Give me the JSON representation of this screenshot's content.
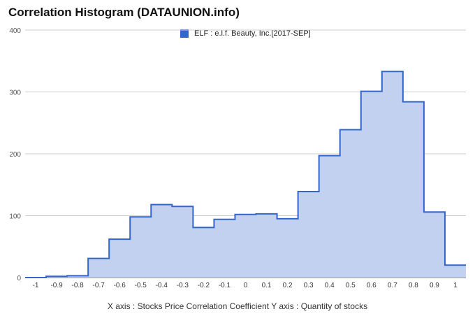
{
  "title": "Correlation Histogram (DATAUNION.info)",
  "caption": "X axis : Stocks Price Correlation Coefficient  Y axis : Quantity of stocks",
  "colors": {
    "line": "#3366cc",
    "fill": "#c3d1f0",
    "grid": "#cccccc"
  },
  "chart_data": {
    "type": "area",
    "series": [
      {
        "name": "ELF : e.l.f. Beauty, Inc.[2017-SEP]",
        "x": [
          -1,
          -0.9,
          -0.8,
          -0.7,
          -0.6,
          -0.5,
          -0.4,
          -0.3,
          -0.2,
          -0.1,
          0,
          0.1,
          0.2,
          0.3,
          0.4,
          0.5,
          0.6,
          0.7,
          0.8,
          0.9,
          1
        ],
        "values": [
          0,
          2,
          3,
          31,
          62,
          98,
          118,
          115,
          81,
          94,
          102,
          103,
          95,
          139,
          197,
          239,
          301,
          333,
          284,
          106,
          20
        ]
      }
    ],
    "x_ticks": [
      "-1",
      "-0.9",
      "-0.8",
      "-0.7",
      "-0.6",
      "-0.5",
      "-0.4",
      "-0.3",
      "-0.2",
      "-0.1",
      "0",
      "0.1",
      "0.2",
      "0.3",
      "0.4",
      "0.5",
      "0.6",
      "0.7",
      "0.8",
      "0.9",
      "1"
    ],
    "y_ticks": [
      "0",
      "100",
      "200",
      "300",
      "400"
    ],
    "ylim": [
      0,
      400
    ],
    "grid": true,
    "legend_position": "top-center"
  }
}
